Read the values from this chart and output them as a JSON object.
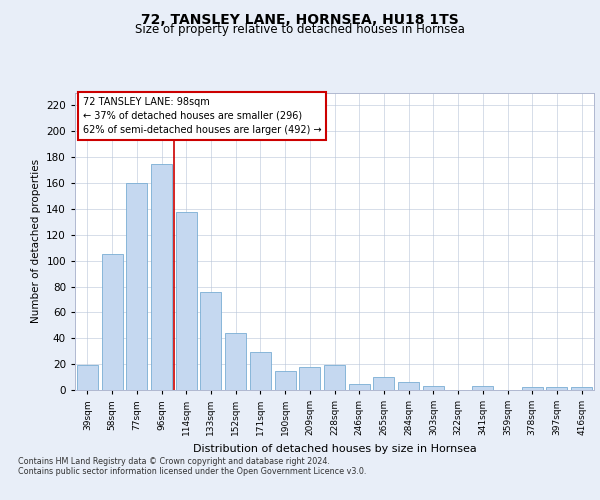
{
  "title_line1": "72, TANSLEY LANE, HORNSEA, HU18 1TS",
  "title_line2": "Size of property relative to detached houses in Hornsea",
  "xlabel": "Distribution of detached houses by size in Hornsea",
  "ylabel": "Number of detached properties",
  "categories": [
    "39sqm",
    "58sqm",
    "77sqm",
    "96sqm",
    "114sqm",
    "133sqm",
    "152sqm",
    "171sqm",
    "190sqm",
    "209sqm",
    "228sqm",
    "246sqm",
    "265sqm",
    "284sqm",
    "303sqm",
    "322sqm",
    "341sqm",
    "359sqm",
    "378sqm",
    "397sqm",
    "416sqm"
  ],
  "values": [
    19,
    105,
    160,
    175,
    138,
    76,
    44,
    29,
    15,
    18,
    19,
    5,
    10,
    6,
    3,
    0,
    3,
    0,
    2,
    2,
    2
  ],
  "bar_color": "#c5d8f0",
  "bar_edge_color": "#7aadd4",
  "property_line_x": 3.5,
  "annotation_line1": "72 TANSLEY LANE: 98sqm",
  "annotation_line2": "← 37% of detached houses are smaller (296)",
  "annotation_line3": "62% of semi-detached houses are larger (492) →",
  "annotation_box_color": "#ffffff",
  "annotation_box_edge": "#cc0000",
  "vline_color": "#cc0000",
  "ylim": [
    0,
    230
  ],
  "yticks": [
    0,
    20,
    40,
    60,
    80,
    100,
    120,
    140,
    160,
    180,
    200,
    220
  ],
  "footer_line1": "Contains HM Land Registry data © Crown copyright and database right 2024.",
  "footer_line2": "Contains public sector information licensed under the Open Government Licence v3.0.",
  "background_color": "#e8eef8",
  "plot_bg_color": "#ffffff"
}
